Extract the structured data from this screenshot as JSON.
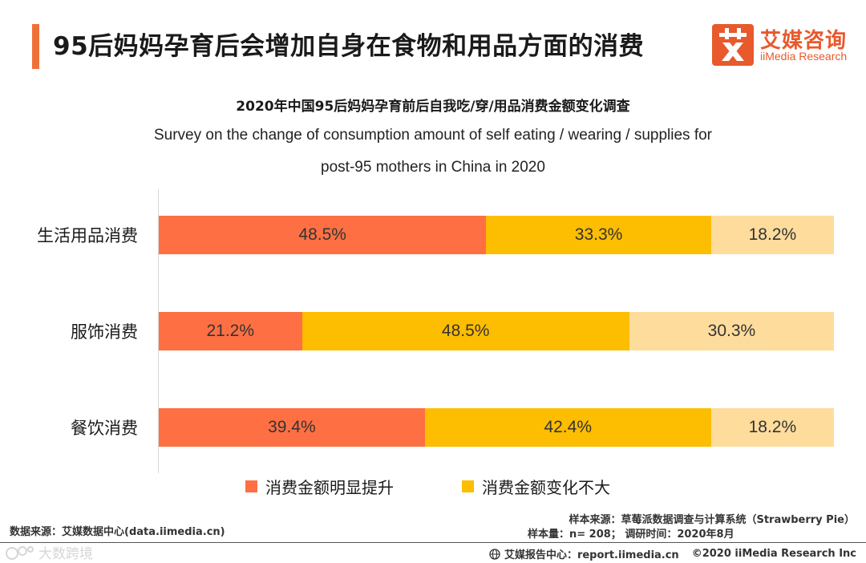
{
  "header": {
    "title": "95后妈妈孕育后会增加自身在食物和用品方面的消费",
    "logo_cn": "艾媒咨询",
    "logo_en": "iiMedia Research",
    "accent_color": "#f07138"
  },
  "chart_data": {
    "type": "bar",
    "orientation": "horizontal",
    "stacked": true,
    "normalized_percent": true,
    "title": "2020年中国95后妈妈孕育前后自我吃/穿/用品消费金额变化调查",
    "subtitle_line1": "Survey on the change of consumption amount of self eating / wearing / supplies for",
    "subtitle_line2": "post-95 mothers in China in 2020",
    "categories": [
      "生活用品消费",
      "服饰消费",
      "餐饮消费"
    ],
    "series": [
      {
        "name": "消费金额明显提升",
        "values": [
          48.5,
          21.2,
          39.4
        ],
        "labels": [
          "48.5%",
          "21.2%",
          "39.4%"
        ],
        "color": "#fe7043",
        "in_legend": true
      },
      {
        "name": "消费金额变化不大",
        "values": [
          33.3,
          48.5,
          42.4
        ],
        "labels": [
          "33.3%",
          "48.5%",
          "42.4%"
        ],
        "color": "#fdbd00",
        "in_legend": true
      },
      {
        "values": [
          18.2,
          30.3,
          18.2
        ],
        "labels": [
          "18.2%",
          "30.3%",
          "18.2%"
        ],
        "color": "#fedc9c",
        "in_legend": false
      }
    ],
    "xlim": [
      0,
      100
    ],
    "legend_position": "bottom",
    "grid": false
  },
  "footer": {
    "source_left": "数据来源：艾媒数据中心(data.iimedia.cn)",
    "sample_source": "样本来源：草莓派数据调查与计算系统（Strawberry  Pie）",
    "sample_info": "样本量：n= 208；  调研时间：2020年8月",
    "report_center": "艾媒报告中心：report.iimedia.cn",
    "copyright": "©2020  iiMedia Research  Inc",
    "watermark": "大数跨境"
  }
}
